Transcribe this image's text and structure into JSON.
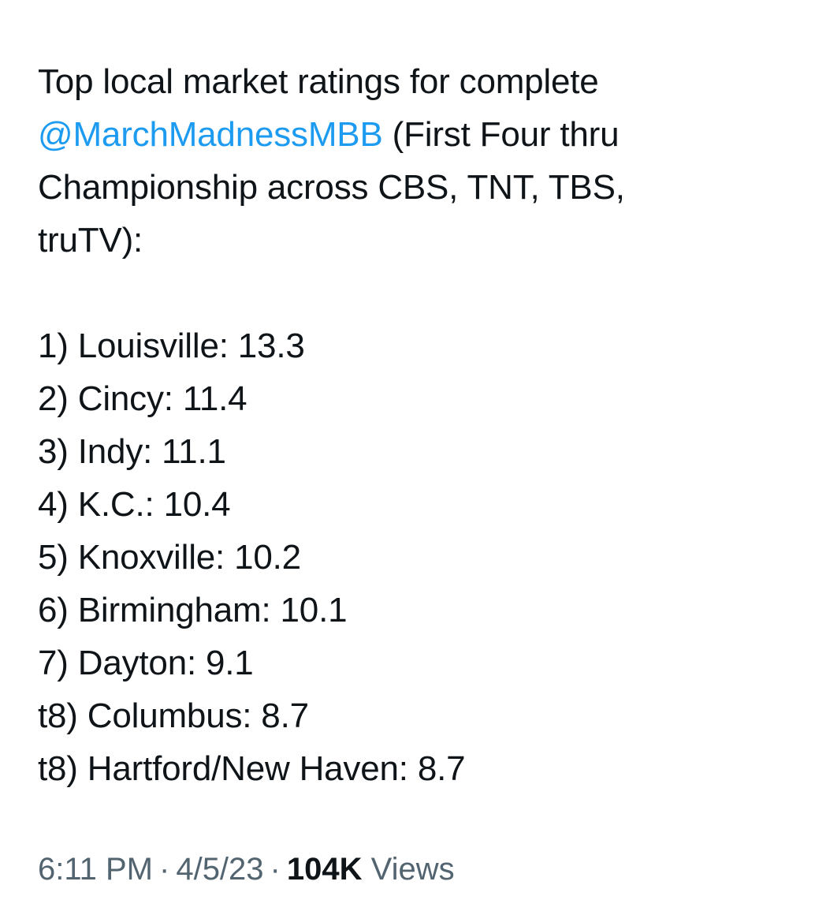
{
  "tweet": {
    "intro": {
      "line1": "Top local market ratings for complete",
      "mention": "@MarchMadnessMBB",
      "line2_rest": " (First Four thru",
      "line3": "Championship across CBS, TNT, TBS,",
      "line4": "truTV):"
    },
    "rankings": [
      "1) Louisville: 13.3",
      "2) Cincy: 11.4",
      "3) Indy: 11.1",
      "4) K.C.: 10.4",
      "5) Knoxville: 10.2",
      "6) Birmingham: 10.1",
      "7) Dayton: 9.1",
      "t8) Columbus: 8.7",
      "t8) Hartford/New Haven: 8.7"
    ],
    "meta": {
      "time": "6:11 PM",
      "date": "4/5/23",
      "separator": "·",
      "views_count": "104K",
      "views_label": "Views"
    }
  },
  "colors": {
    "text": "#0f1419",
    "mention": "#1d9bf0",
    "meta": "#536471",
    "background": "#ffffff"
  }
}
